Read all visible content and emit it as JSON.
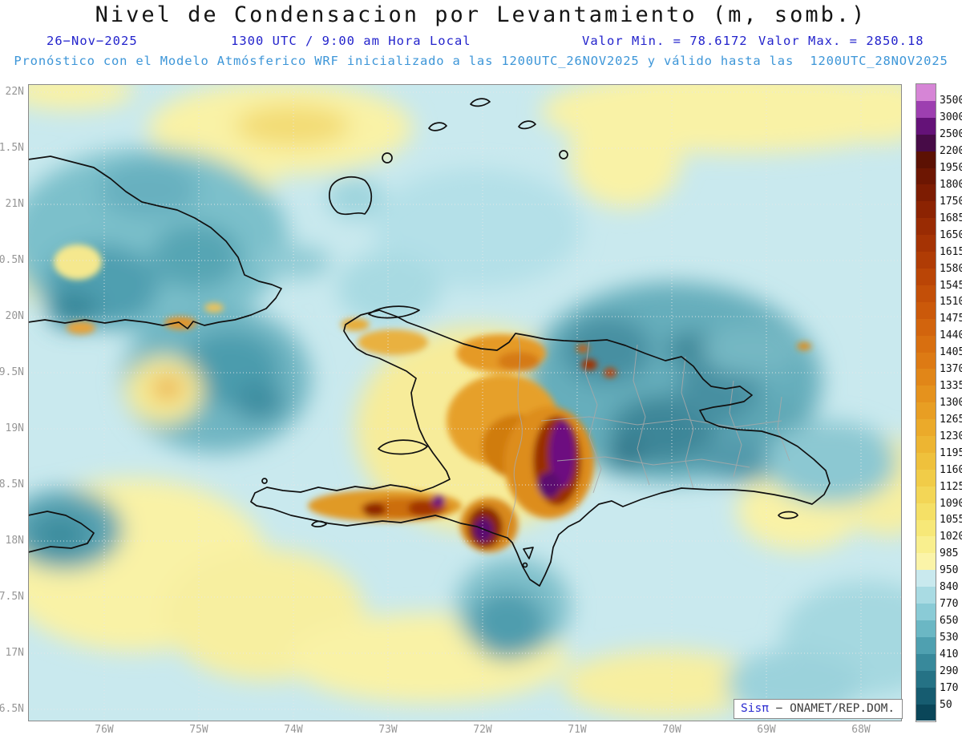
{
  "header": {
    "title": "Nivel de Condensacion por Levantamiento (m, somb.)",
    "date": "26−Nov−2025",
    "time": "1300 UTC / 9:00 am Hora Local",
    "valor_min": "Valor Min. = 78.6172",
    "valor_max": "Valor Max. = 2850.18",
    "forecast": "Pronóstico con el Modelo Atmósferico WRF inicializado a las 1200UTC_26NOV2025 y válido hasta las  1200UTC_28NOV2025"
  },
  "map": {
    "variable": "Nivel de Condensacion por Levantamiento",
    "units": "m",
    "min_value": 78.6172,
    "max_value": 2850.18,
    "lat_labels": [
      "22N",
      "1.5N",
      "21N",
      "0.5N",
      "20N",
      "9.5N",
      "19N",
      "8.5N",
      "18N",
      "7.5N",
      "17N",
      "6.5N"
    ],
    "lon_labels": [
      "76W",
      "75W",
      "74W",
      "73W",
      "72W",
      "71W",
      "70W",
      "69W",
      "68W"
    ]
  },
  "colorbar": {
    "labels": [
      "3500",
      "3000",
      "2500",
      "2200",
      "1950",
      "1800",
      "1750",
      "1685",
      "1650",
      "1615",
      "1580",
      "1545",
      "1510",
      "1475",
      "1440",
      "1405",
      "1370",
      "1335",
      "1300",
      "1265",
      "1230",
      "1195",
      "1160",
      "1125",
      "1090",
      "1055",
      "1020",
      "985",
      "950",
      "840",
      "770",
      "650",
      "530",
      "410",
      "290",
      "170",
      "50"
    ],
    "colors": [
      "#d685d6",
      "#9d3fb0",
      "#641278",
      "#470b47",
      "#5c1103",
      "#6d1602",
      "#7d1c02",
      "#8c2302",
      "#992b03",
      "#a53304",
      "#b03c05",
      "#ba4506",
      "#c34f08",
      "#cb590a",
      "#d2640d",
      "#d86f10",
      "#dd7a14",
      "#e18618",
      "#e5921d",
      "#e89e23",
      "#ebaa2a",
      "#edb532",
      "#efc13c",
      "#f1cc48",
      "#f3d656",
      "#f5e066",
      "#f7e878",
      "#f9ef8e",
      "#fbf4a8",
      "#c9e9ee",
      "#a9dbe3",
      "#8acbd6",
      "#6bb7c4",
      "#4fa0b0",
      "#38899b",
      "#257285",
      "#165c70",
      "#0a4659"
    ]
  },
  "watermark": {
    "app": "Sisπ",
    "source": " − ONAMET/REP.DOM."
  },
  "colors": {
    "header_blue": "#2323cc",
    "forecast_blue": "#3d96d8",
    "axis_gray": "#979797"
  }
}
